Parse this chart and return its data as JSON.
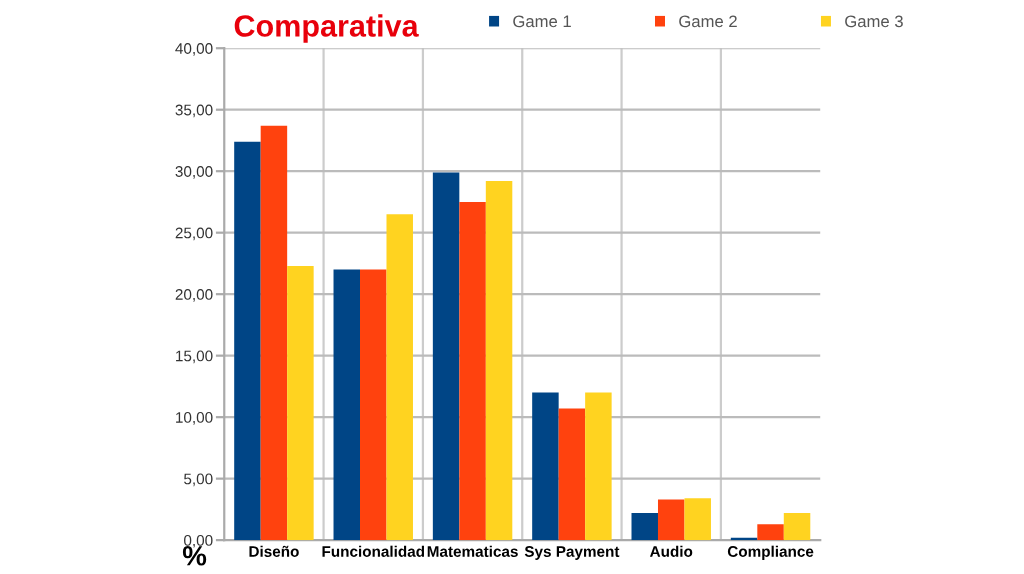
{
  "chart_data": {
    "type": "bar",
    "title": "Comparativa",
    "ylabel": "%",
    "categories": [
      "Diseño",
      "Funcionalidad",
      "Matematicas",
      "Sys Payment",
      "Audio",
      "Compliance"
    ],
    "series": [
      {
        "name": "Game 1",
        "color": "#004586",
        "values": [
          32.4,
          22.0,
          29.9,
          12.0,
          2.2,
          0.2
        ]
      },
      {
        "name": "Game 2",
        "color": "#ff420e",
        "values": [
          33.7,
          22.0,
          27.5,
          10.7,
          3.3,
          1.3
        ]
      },
      {
        "name": "Game 3",
        "color": "#ffd320",
        "values": [
          22.3,
          26.5,
          29.2,
          12.0,
          3.4,
          2.2
        ]
      }
    ],
    "ylim": [
      0,
      40
    ],
    "yticks": [
      {
        "value": 0,
        "label": "0,00"
      },
      {
        "value": 5,
        "label": "5,00"
      },
      {
        "value": 10,
        "label": "10,00"
      },
      {
        "value": 15,
        "label": "15,00"
      },
      {
        "value": 20,
        "label": "20,00"
      },
      {
        "value": 25,
        "label": "25,00"
      },
      {
        "value": 30,
        "label": "30,00"
      },
      {
        "value": 35,
        "label": "35,00"
      },
      {
        "value": 40,
        "label": "40,00"
      }
    ],
    "grid": true,
    "legend": "top"
  }
}
